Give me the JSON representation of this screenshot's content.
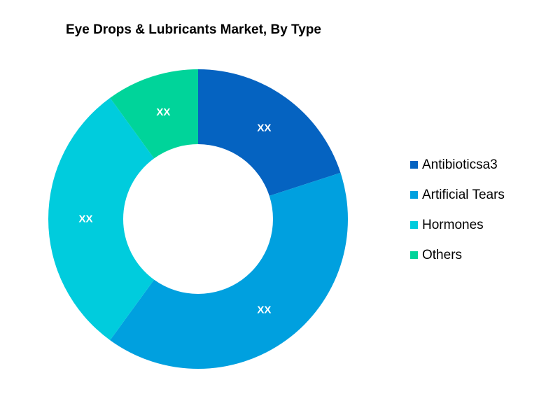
{
  "chart_data": {
    "type": "pie",
    "title": "Eye Drops & Lubricants Market, By Type",
    "donut": true,
    "categories": [
      "Antibioticsa3",
      "Artificial Tears",
      "Hormones",
      "Others"
    ],
    "values": [
      20,
      40,
      30,
      10
    ],
    "data_labels": [
      "XX",
      "XX",
      "XX",
      "XX"
    ],
    "colors": [
      "#0563C1",
      "#00A0DF",
      "#00CCDD",
      "#00D49A"
    ],
    "legend_position": "right"
  }
}
